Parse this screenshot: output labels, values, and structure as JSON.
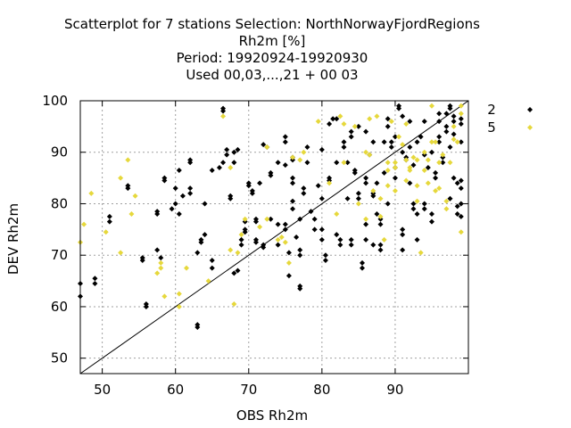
{
  "chart_data": {
    "type": "scatter",
    "title_lines": [
      "Scatterplot for    7 stations Selection: NorthNorwayFjordRegions",
      "Rh2m [%]",
      "Period: 19920924-19920930",
      "Used  00,03,...,21  + 00 03"
    ],
    "xlabel": "OBS Rh2m",
    "ylabel": "DEV Rh2m",
    "xlim": [
      47,
      100
    ],
    "ylim": [
      47,
      100
    ],
    "xticks": [
      50,
      60,
      70,
      80,
      90
    ],
    "yticks": [
      50,
      60,
      70,
      80,
      90,
      100
    ],
    "grid": true,
    "legend_position": "right",
    "diagonal_line": true,
    "series": [
      {
        "name": "2",
        "color": "#000000",
        "marker": "diamond",
        "points": [
          [
            47,
            62
          ],
          [
            47,
            64.5
          ],
          [
            49,
            64.5
          ],
          [
            49,
            65.5
          ],
          [
            51,
            76.5
          ],
          [
            51,
            77.5
          ],
          [
            53.5,
            83
          ],
          [
            53.5,
            83.5
          ],
          [
            55.5,
            69
          ],
          [
            55.5,
            69.5
          ],
          [
            56,
            60
          ],
          [
            56,
            60.5
          ],
          [
            57.5,
            71
          ],
          [
            57.5,
            78
          ],
          [
            57.5,
            78.5
          ],
          [
            58,
            69.5
          ],
          [
            58.5,
            84.5
          ],
          [
            58.5,
            85
          ],
          [
            59.5,
            79
          ],
          [
            60,
            80
          ],
          [
            60,
            83
          ],
          [
            60.5,
            86.5
          ],
          [
            60.5,
            78
          ],
          [
            61,
            81.5
          ],
          [
            62,
            88
          ],
          [
            62,
            88.5
          ],
          [
            62,
            82
          ],
          [
            62,
            83
          ],
          [
            63,
            56
          ],
          [
            63,
            56.5
          ],
          [
            63,
            70.5
          ],
          [
            63.5,
            72.5
          ],
          [
            63.5,
            73
          ],
          [
            64,
            74
          ],
          [
            64,
            80
          ],
          [
            65,
            69
          ],
          [
            65,
            67.5
          ],
          [
            65,
            86.5
          ],
          [
            66,
            87
          ],
          [
            66.5,
            98.5
          ],
          [
            66.5,
            98
          ],
          [
            66.5,
            88
          ],
          [
            67,
            89.5
          ],
          [
            67,
            90.5
          ],
          [
            67.5,
            81
          ],
          [
            67.5,
            81.5
          ],
          [
            68,
            88
          ],
          [
            68,
            90
          ],
          [
            68.5,
            90.5
          ],
          [
            68,
            66.5
          ],
          [
            68.5,
            67
          ],
          [
            69,
            72
          ],
          [
            69,
            73
          ],
          [
            69.5,
            74.5
          ],
          [
            69.5,
            75
          ],
          [
            69.5,
            76.5
          ],
          [
            70,
            83.5
          ],
          [
            70,
            84
          ],
          [
            70.5,
            82
          ],
          [
            70.5,
            82.5
          ],
          [
            71,
            72.5
          ],
          [
            71,
            73
          ],
          [
            71,
            76.5
          ],
          [
            71,
            77
          ],
          [
            71.5,
            84
          ],
          [
            72,
            71.5
          ],
          [
            72,
            72
          ],
          [
            72,
            91.5
          ],
          [
            72.5,
            91
          ],
          [
            73,
            77
          ],
          [
            73,
            85.5
          ],
          [
            73,
            86
          ],
          [
            74,
            72
          ],
          [
            74,
            76
          ],
          [
            74,
            88
          ],
          [
            75,
            92
          ],
          [
            75,
            93
          ],
          [
            75,
            87.5
          ],
          [
            75,
            75
          ],
          [
            75,
            76
          ],
          [
            75.5,
            66
          ],
          [
            75.5,
            70.5
          ],
          [
            76,
            79
          ],
          [
            76,
            80.5
          ],
          [
            76,
            84
          ],
          [
            76,
            85
          ],
          [
            76,
            88.5
          ],
          [
            76,
            89
          ],
          [
            76.5,
            73.5
          ],
          [
            77,
            70
          ],
          [
            77,
            71
          ],
          [
            77,
            77
          ],
          [
            77,
            64
          ],
          [
            77,
            63.5
          ],
          [
            77.5,
            82
          ],
          [
            77.5,
            83
          ],
          [
            78,
            91
          ],
          [
            78,
            88
          ],
          [
            78.5,
            78.5
          ],
          [
            79,
            75
          ],
          [
            79,
            77
          ],
          [
            79.5,
            83.5
          ],
          [
            80,
            81
          ],
          [
            80,
            73
          ],
          [
            80,
            75
          ],
          [
            80,
            90.5
          ],
          [
            80.5,
            69
          ],
          [
            80.5,
            70
          ],
          [
            81,
            95.5
          ],
          [
            81,
            84.5
          ],
          [
            81,
            85
          ],
          [
            81.5,
            96.5
          ],
          [
            82,
            96.5
          ],
          [
            82,
            88
          ],
          [
            82,
            74
          ],
          [
            82.5,
            72
          ],
          [
            82.5,
            73
          ],
          [
            83,
            91
          ],
          [
            83,
            92
          ],
          [
            83.5,
            81
          ],
          [
            83.5,
            88
          ],
          [
            84,
            93
          ],
          [
            84,
            94
          ],
          [
            84,
            72
          ],
          [
            84,
            73
          ],
          [
            84.5,
            86
          ],
          [
            84.5,
            86.5
          ],
          [
            85,
            95
          ],
          [
            85,
            81
          ],
          [
            85,
            82
          ],
          [
            85.5,
            67.5
          ],
          [
            85.5,
            68.5
          ],
          [
            86,
            73
          ],
          [
            86,
            76
          ],
          [
            86,
            84
          ],
          [
            86,
            85
          ],
          [
            86,
            94
          ],
          [
            86.5,
            89.5
          ],
          [
            87,
            92
          ],
          [
            87,
            81.5
          ],
          [
            87,
            82
          ],
          [
            87,
            72
          ],
          [
            87.5,
            84
          ],
          [
            87.5,
            78
          ],
          [
            88,
            76
          ],
          [
            88,
            77
          ],
          [
            88,
            71
          ],
          [
            88,
            72
          ],
          [
            88.5,
            86
          ],
          [
            88.5,
            92
          ],
          [
            89,
            95
          ],
          [
            89,
            96.5
          ],
          [
            89,
            80
          ],
          [
            89.5,
            91
          ],
          [
            89.5,
            92
          ],
          [
            90,
            93
          ],
          [
            90,
            85
          ],
          [
            90,
            87
          ],
          [
            90.5,
            98.5
          ],
          [
            90.5,
            99
          ],
          [
            91,
            97
          ],
          [
            91,
            90
          ],
          [
            91,
            74
          ],
          [
            91,
            75
          ],
          [
            91,
            71
          ],
          [
            91.5,
            88.5
          ],
          [
            91.5,
            89
          ],
          [
            92,
            96
          ],
          [
            92,
            91
          ],
          [
            92,
            84
          ],
          [
            92.5,
            79
          ],
          [
            92.5,
            80
          ],
          [
            92.5,
            87.5
          ],
          [
            93,
            92
          ],
          [
            93,
            73
          ],
          [
            93,
            78
          ],
          [
            93.5,
            93
          ],
          [
            94,
            89.5
          ],
          [
            94,
            96
          ],
          [
            94,
            79
          ],
          [
            94,
            80
          ],
          [
            94.5,
            87
          ],
          [
            95,
            90
          ],
          [
            95,
            78
          ],
          [
            95,
            76.5
          ],
          [
            95.5,
            85
          ],
          [
            95.5,
            86
          ],
          [
            96,
            96
          ],
          [
            96,
            97.5
          ],
          [
            96,
            92
          ],
          [
            96,
            93
          ],
          [
            96.5,
            88
          ],
          [
            96.5,
            89
          ],
          [
            97,
            94
          ],
          [
            97,
            95
          ],
          [
            97,
            97.5
          ],
          [
            97.5,
            98.5
          ],
          [
            97.5,
            99
          ],
          [
            97.5,
            91
          ],
          [
            97.5,
            81
          ],
          [
            98,
            96
          ],
          [
            98,
            97
          ],
          [
            98,
            93.5
          ],
          [
            98,
            85
          ],
          [
            98.5,
            84
          ],
          [
            98.5,
            78
          ],
          [
            98.5,
            79.5
          ],
          [
            99,
            96.5
          ],
          [
            99,
            95.5
          ],
          [
            99,
            92
          ],
          [
            99,
            84.5
          ],
          [
            99,
            83
          ],
          [
            99,
            77.5
          ],
          [
            99,
            80
          ]
        ]
      },
      {
        "name": "5",
        "color": "#e6d83c",
        "marker": "diamond",
        "points": [
          [
            47,
            72.5
          ],
          [
            47.5,
            76
          ],
          [
            48.5,
            82
          ],
          [
            50.5,
            74.5
          ],
          [
            52.5,
            85
          ],
          [
            52.5,
            70.5
          ],
          [
            53.5,
            88.5
          ],
          [
            54,
            78
          ],
          [
            54.5,
            81.5
          ],
          [
            57.5,
            66.5
          ],
          [
            58,
            67.5
          ],
          [
            58,
            68.5
          ],
          [
            58.5,
            62
          ],
          [
            60.5,
            60
          ],
          [
            60.5,
            62.5
          ],
          [
            61.5,
            67.5
          ],
          [
            64.5,
            65
          ],
          [
            66.5,
            97
          ],
          [
            67.5,
            87
          ],
          [
            67.5,
            71
          ],
          [
            68,
            60.5
          ],
          [
            68.5,
            70.5
          ],
          [
            69,
            74
          ],
          [
            69.5,
            77
          ],
          [
            71.5,
            75.5
          ],
          [
            72.5,
            77
          ],
          [
            72.5,
            91
          ],
          [
            74,
            73
          ],
          [
            74.5,
            73.5
          ],
          [
            75,
            72.5
          ],
          [
            75.5,
            68.5
          ],
          [
            76,
            89
          ],
          [
            77,
            88.5
          ],
          [
            77.5,
            90
          ],
          [
            79.5,
            96
          ],
          [
            81,
            84
          ],
          [
            82,
            78
          ],
          [
            82.5,
            97
          ],
          [
            83,
            88
          ],
          [
            83,
            95.5
          ],
          [
            84.5,
            95
          ],
          [
            85,
            80
          ],
          [
            86,
            77
          ],
          [
            86,
            90
          ],
          [
            86.5,
            89.5
          ],
          [
            86.5,
            96.5
          ],
          [
            87,
            82.5
          ],
          [
            87.5,
            97
          ],
          [
            88,
            81
          ],
          [
            88,
            77.5
          ],
          [
            88.5,
            73
          ],
          [
            89,
            83.5
          ],
          [
            89,
            86.5
          ],
          [
            89,
            88
          ],
          [
            89.5,
            96
          ],
          [
            90,
            87
          ],
          [
            90,
            88
          ],
          [
            90,
            82.5
          ],
          [
            90.5,
            93
          ],
          [
            91,
            91.5
          ],
          [
            91.5,
            84.5
          ],
          [
            91.5,
            88.5
          ],
          [
            91.5,
            95.5
          ],
          [
            92,
            87
          ],
          [
            92,
            86.5
          ],
          [
            92.5,
            89
          ],
          [
            93,
            83.5
          ],
          [
            93,
            88.5
          ],
          [
            93,
            80.5
          ],
          [
            93.5,
            70.5
          ],
          [
            94,
            86.5
          ],
          [
            94,
            90
          ],
          [
            94.5,
            88.5
          ],
          [
            94.5,
            84
          ],
          [
            95,
            99
          ],
          [
            95,
            92
          ],
          [
            95.5,
            92
          ],
          [
            95.5,
            82.5
          ],
          [
            96,
            83
          ],
          [
            96,
            88
          ],
          [
            96.5,
            89.5
          ],
          [
            97,
            80.5
          ],
          [
            97,
            79
          ],
          [
            97.5,
            88
          ],
          [
            98,
            95
          ],
          [
            98,
            92.5
          ],
          [
            98.5,
            92
          ],
          [
            99,
            99
          ],
          [
            99,
            74.5
          ],
          [
            99,
            97.5
          ]
        ]
      }
    ]
  }
}
